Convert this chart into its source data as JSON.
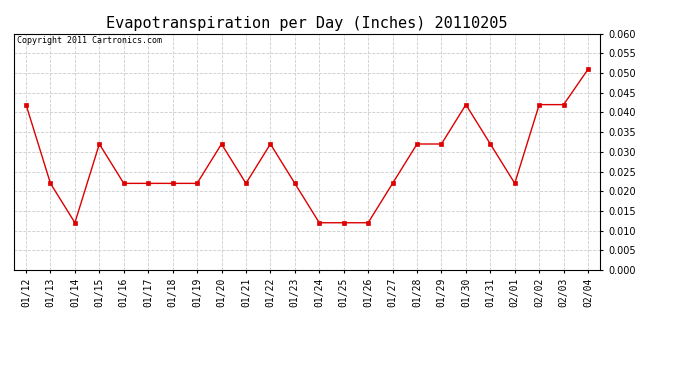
{
  "title": "Evapotranspiration per Day (Inches) 20110205",
  "copyright_text": "Copyright 2011 Cartronics.com",
  "x_labels": [
    "01/12",
    "01/13",
    "01/14",
    "01/15",
    "01/16",
    "01/17",
    "01/18",
    "01/19",
    "01/20",
    "01/21",
    "01/22",
    "01/23",
    "01/24",
    "01/25",
    "01/26",
    "01/27",
    "01/28",
    "01/29",
    "01/30",
    "01/31",
    "02/01",
    "02/02",
    "02/03",
    "02/04"
  ],
  "y_values": [
    0.042,
    0.022,
    0.012,
    0.032,
    0.022,
    0.022,
    0.022,
    0.022,
    0.032,
    0.022,
    0.032,
    0.022,
    0.012,
    0.012,
    0.012,
    0.022,
    0.032,
    0.032,
    0.042,
    0.032,
    0.022,
    0.042,
    0.042,
    0.051
  ],
  "line_color": "#dd0000",
  "marker": "s",
  "marker_size": 3,
  "ylim": [
    0.0,
    0.06
  ],
  "yticks": [
    0.0,
    0.005,
    0.01,
    0.015,
    0.02,
    0.025,
    0.03,
    0.035,
    0.04,
    0.045,
    0.05,
    0.055,
    0.06
  ],
  "background_color": "#ffffff",
  "plot_bg_color": "#ffffff",
  "grid_color": "#cccccc",
  "title_fontsize": 11,
  "copyright_fontsize": 6,
  "tick_fontsize": 7,
  "y_tick_fontsize": 7
}
